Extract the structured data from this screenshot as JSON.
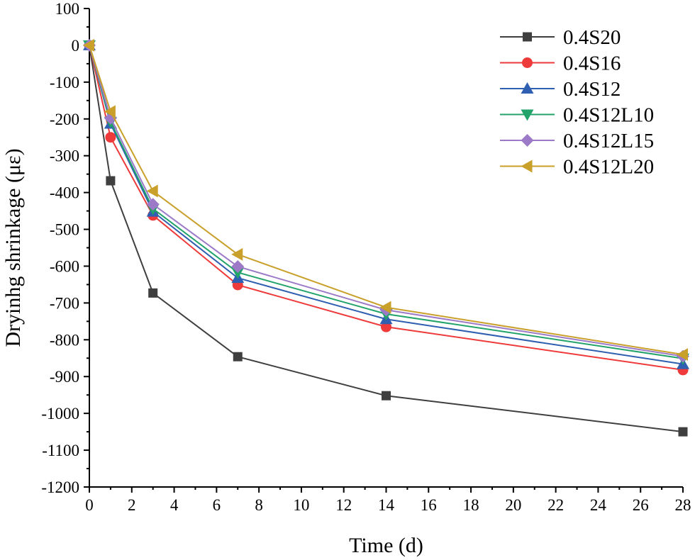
{
  "chart_data": {
    "type": "line",
    "title": "",
    "xlabel": "Time (d)",
    "ylabel": "Dryinhg shrinkage (με)",
    "xlim": [
      0,
      28
    ],
    "ylim": [
      -1200,
      100
    ],
    "xticks": [
      0,
      2,
      4,
      6,
      8,
      10,
      12,
      14,
      16,
      18,
      20,
      22,
      24,
      26,
      28
    ],
    "yticks": [
      100,
      0,
      -100,
      -200,
      -300,
      -400,
      -500,
      -600,
      -700,
      -800,
      -900,
      -1000,
      -1100,
      -1200
    ],
    "x": [
      0,
      1,
      3,
      7,
      14,
      28
    ],
    "legend_position": "top-right",
    "grid": false,
    "series": [
      {
        "name": "0.4S20",
        "marker": "square",
        "color": "#3f3f3f",
        "values": [
          0,
          -368,
          -673,
          -846,
          -952,
          -1050
        ]
      },
      {
        "name": "0.4S16",
        "marker": "circle",
        "color": "#ee3a3a",
        "values": [
          0,
          -250,
          -462,
          -651,
          -765,
          -882
        ]
      },
      {
        "name": "0.4S12",
        "marker": "triangle-up",
        "color": "#2f5fb0",
        "values": [
          0,
          -213,
          -452,
          -632,
          -744,
          -866
        ]
      },
      {
        "name": "0.4S12L10",
        "marker": "triangle-down",
        "color": "#22a36a",
        "values": [
          0,
          -208,
          -444,
          -617,
          -730,
          -851
        ]
      },
      {
        "name": "0.4S12L15",
        "marker": "diamond",
        "color": "#9c7ac8",
        "values": [
          0,
          -198,
          -432,
          -601,
          -719,
          -845
        ]
      },
      {
        "name": "0.4S12L20",
        "marker": "triangle-left",
        "color": "#c9a02a",
        "values": [
          0,
          -180,
          -396,
          -568,
          -712,
          -840
        ]
      }
    ]
  }
}
